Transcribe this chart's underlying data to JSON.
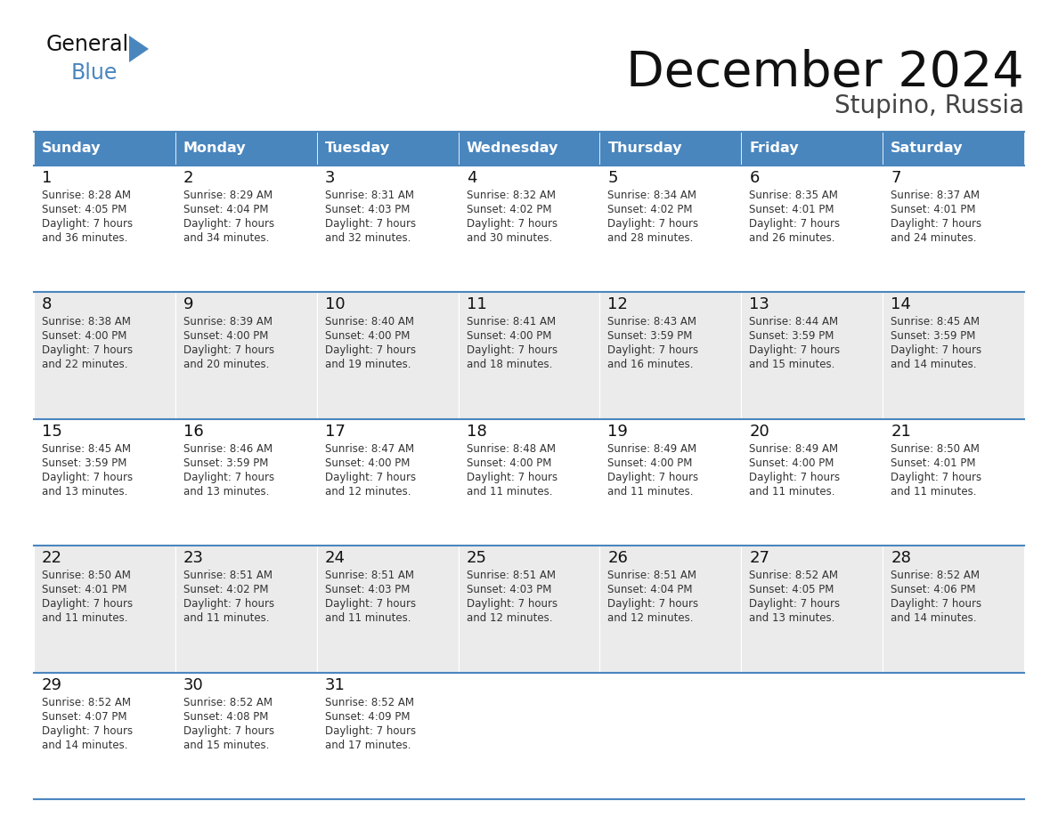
{
  "title": "December 2024",
  "subtitle": "Stupino, Russia",
  "header_color": "#4a86be",
  "header_text_color": "#ffffff",
  "row_colors": [
    "#ffffff",
    "#ebebeb"
  ],
  "day_num_bg": [
    "#f2f2f2",
    "#e0e0e0"
  ],
  "border_color": "#4a86be",
  "text_color": "#333333",
  "day_names": [
    "Sunday",
    "Monday",
    "Tuesday",
    "Wednesday",
    "Thursday",
    "Friday",
    "Saturday"
  ],
  "days": [
    {
      "day": 1,
      "col": 0,
      "row": 0,
      "sunrise": "8:28 AM",
      "sunset": "4:05 PM",
      "daylight_min": "36 minutes."
    },
    {
      "day": 2,
      "col": 1,
      "row": 0,
      "sunrise": "8:29 AM",
      "sunset": "4:04 PM",
      "daylight_min": "34 minutes."
    },
    {
      "day": 3,
      "col": 2,
      "row": 0,
      "sunrise": "8:31 AM",
      "sunset": "4:03 PM",
      "daylight_min": "32 minutes."
    },
    {
      "day": 4,
      "col": 3,
      "row": 0,
      "sunrise": "8:32 AM",
      "sunset": "4:02 PM",
      "daylight_min": "30 minutes."
    },
    {
      "day": 5,
      "col": 4,
      "row": 0,
      "sunrise": "8:34 AM",
      "sunset": "4:02 PM",
      "daylight_min": "28 minutes."
    },
    {
      "day": 6,
      "col": 5,
      "row": 0,
      "sunrise": "8:35 AM",
      "sunset": "4:01 PM",
      "daylight_min": "26 minutes."
    },
    {
      "day": 7,
      "col": 6,
      "row": 0,
      "sunrise": "8:37 AM",
      "sunset": "4:01 PM",
      "daylight_min": "24 minutes."
    },
    {
      "day": 8,
      "col": 0,
      "row": 1,
      "sunrise": "8:38 AM",
      "sunset": "4:00 PM",
      "daylight_min": "22 minutes."
    },
    {
      "day": 9,
      "col": 1,
      "row": 1,
      "sunrise": "8:39 AM",
      "sunset": "4:00 PM",
      "daylight_min": "20 minutes."
    },
    {
      "day": 10,
      "col": 2,
      "row": 1,
      "sunrise": "8:40 AM",
      "sunset": "4:00 PM",
      "daylight_min": "19 minutes."
    },
    {
      "day": 11,
      "col": 3,
      "row": 1,
      "sunrise": "8:41 AM",
      "sunset": "4:00 PM",
      "daylight_min": "18 minutes."
    },
    {
      "day": 12,
      "col": 4,
      "row": 1,
      "sunrise": "8:43 AM",
      "sunset": "3:59 PM",
      "daylight_min": "16 minutes."
    },
    {
      "day": 13,
      "col": 5,
      "row": 1,
      "sunrise": "8:44 AM",
      "sunset": "3:59 PM",
      "daylight_min": "15 minutes."
    },
    {
      "day": 14,
      "col": 6,
      "row": 1,
      "sunrise": "8:45 AM",
      "sunset": "3:59 PM",
      "daylight_min": "14 minutes."
    },
    {
      "day": 15,
      "col": 0,
      "row": 2,
      "sunrise": "8:45 AM",
      "sunset": "3:59 PM",
      "daylight_min": "13 minutes."
    },
    {
      "day": 16,
      "col": 1,
      "row": 2,
      "sunrise": "8:46 AM",
      "sunset": "3:59 PM",
      "daylight_min": "13 minutes."
    },
    {
      "day": 17,
      "col": 2,
      "row": 2,
      "sunrise": "8:47 AM",
      "sunset": "4:00 PM",
      "daylight_min": "12 minutes."
    },
    {
      "day": 18,
      "col": 3,
      "row": 2,
      "sunrise": "8:48 AM",
      "sunset": "4:00 PM",
      "daylight_min": "11 minutes."
    },
    {
      "day": 19,
      "col": 4,
      "row": 2,
      "sunrise": "8:49 AM",
      "sunset": "4:00 PM",
      "daylight_min": "11 minutes."
    },
    {
      "day": 20,
      "col": 5,
      "row": 2,
      "sunrise": "8:49 AM",
      "sunset": "4:00 PM",
      "daylight_min": "11 minutes."
    },
    {
      "day": 21,
      "col": 6,
      "row": 2,
      "sunrise": "8:50 AM",
      "sunset": "4:01 PM",
      "daylight_min": "11 minutes."
    },
    {
      "day": 22,
      "col": 0,
      "row": 3,
      "sunrise": "8:50 AM",
      "sunset": "4:01 PM",
      "daylight_min": "11 minutes."
    },
    {
      "day": 23,
      "col": 1,
      "row": 3,
      "sunrise": "8:51 AM",
      "sunset": "4:02 PM",
      "daylight_min": "11 minutes."
    },
    {
      "day": 24,
      "col": 2,
      "row": 3,
      "sunrise": "8:51 AM",
      "sunset": "4:03 PM",
      "daylight_min": "11 minutes."
    },
    {
      "day": 25,
      "col": 3,
      "row": 3,
      "sunrise": "8:51 AM",
      "sunset": "4:03 PM",
      "daylight_min": "12 minutes."
    },
    {
      "day": 26,
      "col": 4,
      "row": 3,
      "sunrise": "8:51 AM",
      "sunset": "4:04 PM",
      "daylight_min": "12 minutes."
    },
    {
      "day": 27,
      "col": 5,
      "row": 3,
      "sunrise": "8:52 AM",
      "sunset": "4:05 PM",
      "daylight_min": "13 minutes."
    },
    {
      "day": 28,
      "col": 6,
      "row": 3,
      "sunrise": "8:52 AM",
      "sunset": "4:06 PM",
      "daylight_min": "14 minutes."
    },
    {
      "day": 29,
      "col": 0,
      "row": 4,
      "sunrise": "8:52 AM",
      "sunset": "4:07 PM",
      "daylight_min": "14 minutes."
    },
    {
      "day": 30,
      "col": 1,
      "row": 4,
      "sunrise": "8:52 AM",
      "sunset": "4:08 PM",
      "daylight_min": "15 minutes."
    },
    {
      "day": 31,
      "col": 2,
      "row": 4,
      "sunrise": "8:52 AM",
      "sunset": "4:09 PM",
      "daylight_min": "17 minutes."
    }
  ],
  "num_rows": 5,
  "num_cols": 7
}
